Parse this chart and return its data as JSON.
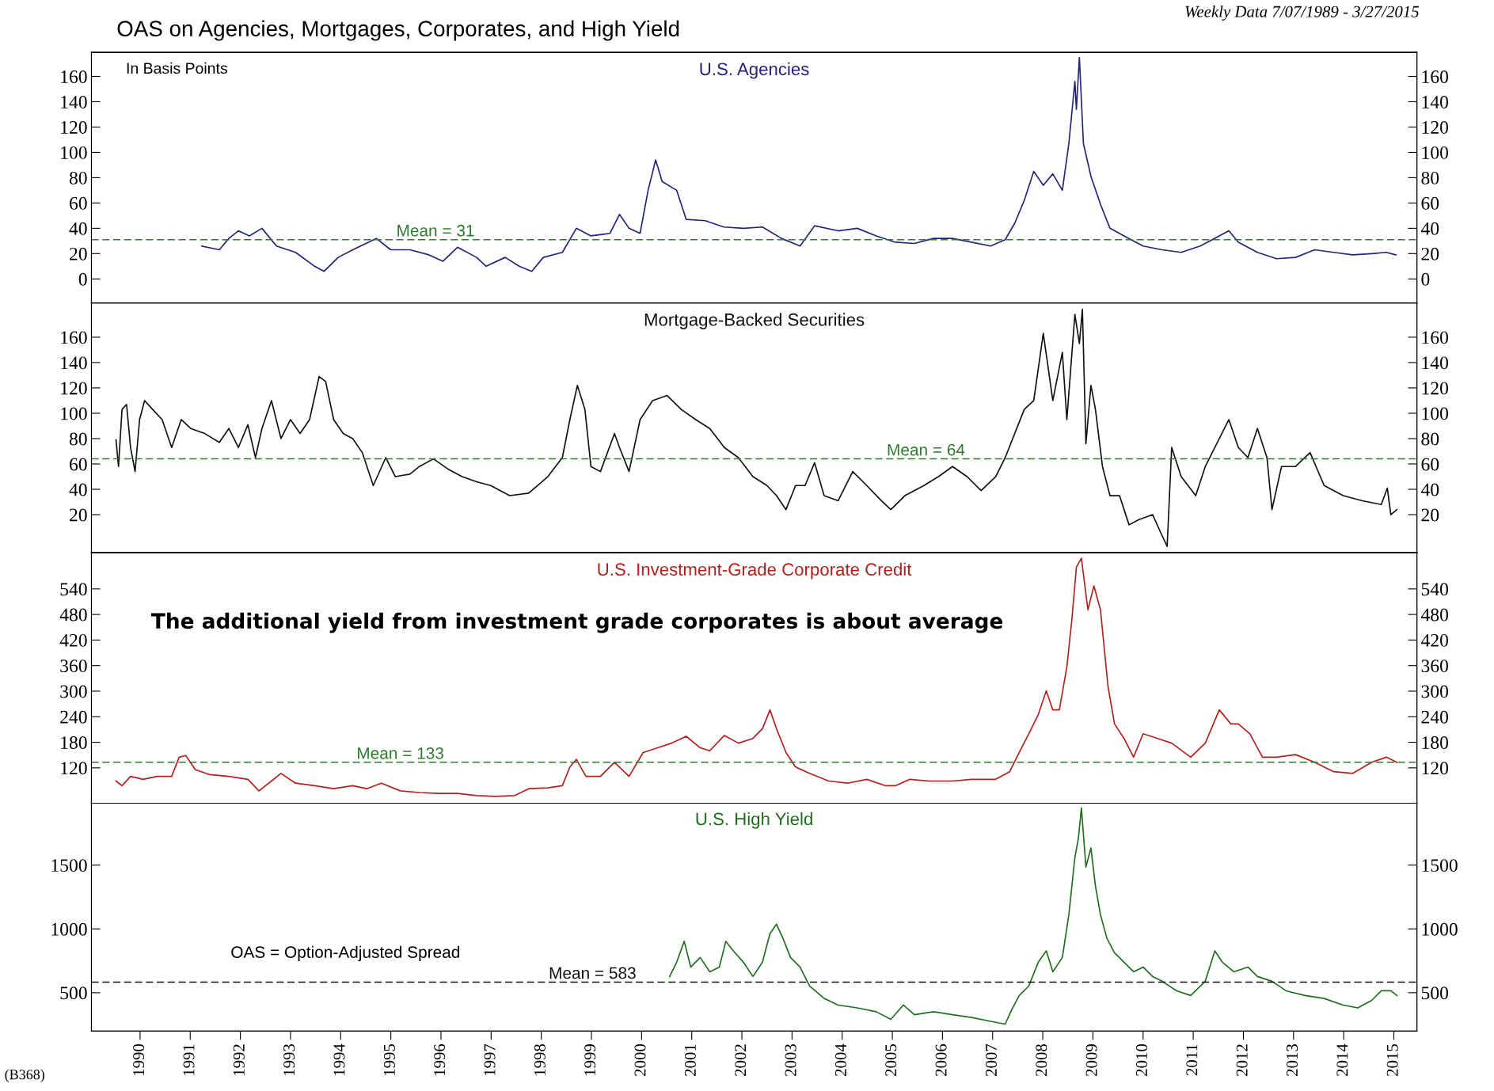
{
  "chart_data": [
    {
      "type": "line",
      "title": "U.S. Agencies",
      "annotations": [
        "OAS on Agencies, Mortgages, Corporates, and High Yield",
        "Weekly Data 7/07/1989 - 3/27/2015",
        "In Basis Points"
      ],
      "x": [
        1991.23,
        1991.58,
        1991.77,
        1991.96,
        1992.18,
        1992.43,
        1992.72,
        1993.1,
        1993.48,
        1993.67,
        1993.95,
        1994.24,
        1994.71,
        1995.0,
        1995.38,
        1995.76,
        1996.04,
        1996.33,
        1996.71,
        1996.9,
        1997.28,
        1997.56,
        1997.81,
        1998.04,
        1998.42,
        1998.7,
        1998.99,
        1999.37,
        1999.56,
        1999.75,
        1999.97,
        2000.13,
        2000.28,
        2000.41,
        2000.7,
        2000.89,
        2001.27,
        2001.64,
        2002.03,
        2002.41,
        2002.79,
        2003.16,
        2003.45,
        2003.92,
        2004.3,
        2004.68,
        2005.06,
        2005.44,
        2005.82,
        2006.2,
        2006.58,
        2006.96,
        2007.25,
        2007.44,
        2007.63,
        2007.82,
        2008.01,
        2008.2,
        2008.39,
        2008.52,
        2008.64,
        2008.67,
        2008.73,
        2008.81,
        2008.96,
        2009.15,
        2009.34,
        2009.62,
        2010.0,
        2010.38,
        2010.76,
        2011.14,
        2011.71,
        2011.9,
        2012.28,
        2012.66,
        2013.04,
        2013.42,
        2013.8,
        2014.18,
        2014.56,
        2014.85,
        2015.04
      ],
      "values": [
        26,
        23,
        32,
        38,
        34,
        40,
        26,
        21,
        10,
        6,
        17,
        23,
        32,
        23,
        23,
        19,
        14,
        25,
        17,
        10,
        17,
        10,
        6,
        17,
        21,
        40,
        34,
        36,
        51,
        40,
        36,
        70,
        94,
        77,
        70,
        47,
        46,
        41,
        40,
        41,
        32,
        26,
        42,
        38,
        40,
        34,
        29,
        28,
        32,
        32,
        29,
        26,
        31,
        44,
        62,
        85,
        74,
        83,
        70,
        107,
        156,
        134,
        175,
        107,
        81,
        59,
        40,
        34,
        26,
        23,
        21,
        26,
        38,
        29,
        21,
        16,
        17,
        23,
        21,
        19,
        20,
        21,
        19
      ],
      "color": "#232378",
      "xlim": [
        1989.03,
        2015.46
      ],
      "ylim": [
        -19,
        179
      ],
      "yticks": [
        0,
        20,
        40,
        60,
        80,
        100,
        120,
        140,
        160
      ],
      "y2lim": [
        -19,
        179
      ],
      "y2ticks": [
        0,
        20,
        40,
        60,
        80,
        100,
        120,
        140,
        160
      ],
      "tick_labels": "y",
      "ref_lines": [
        {
          "axis": "y",
          "value": 31,
          "label": "Mean = 31",
          "color": "#2e7d2e",
          "line_style": "dashed"
        }
      ]
    },
    {
      "type": "line",
      "title": "Mortgage-Backed Securities",
      "x": [
        1989.52,
        1989.57,
        1989.64,
        1989.73,
        1989.81,
        1989.9,
        1989.99,
        1990.09,
        1990.25,
        1990.44,
        1990.63,
        1990.82,
        1991.01,
        1991.29,
        1991.58,
        1991.77,
        1991.96,
        1992.15,
        1992.3,
        1992.43,
        1992.62,
        1992.81,
        1993.0,
        1993.19,
        1993.38,
        1993.57,
        1993.7,
        1993.86,
        1994.05,
        1994.24,
        1994.43,
        1994.65,
        1994.9,
        1995.09,
        1995.38,
        1995.57,
        1995.85,
        1996.14,
        1996.42,
        1996.71,
        1996.99,
        1997.37,
        1997.75,
        1998.13,
        1998.42,
        1998.57,
        1998.72,
        1998.87,
        1998.99,
        1999.18,
        1999.46,
        1999.56,
        1999.75,
        1999.97,
        2000.22,
        2000.51,
        2000.79,
        2001.08,
        2001.36,
        2001.65,
        2001.93,
        2002.22,
        2002.5,
        2002.69,
        2002.88,
        2003.07,
        2003.26,
        2003.45,
        2003.64,
        2003.92,
        2004.21,
        2004.49,
        2004.78,
        2004.97,
        2005.25,
        2005.63,
        2005.92,
        2006.2,
        2006.49,
        2006.77,
        2007.06,
        2007.25,
        2007.44,
        2007.63,
        2007.82,
        2008.01,
        2008.2,
        2008.39,
        2008.48,
        2008.64,
        2008.73,
        2008.79,
        2008.86,
        2008.96,
        2009.05,
        2009.19,
        2009.34,
        2009.53,
        2009.72,
        2009.91,
        2010.19,
        2010.35,
        2010.48,
        2010.57,
        2010.76,
        2011.05,
        2011.24,
        2011.52,
        2011.71,
        2011.9,
        2012.09,
        2012.28,
        2012.47,
        2012.57,
        2012.76,
        2013.04,
        2013.33,
        2013.61,
        2013.99,
        2014.37,
        2014.75,
        2014.87,
        2014.94,
        2015.06
      ],
      "values": [
        79,
        58,
        103,
        107,
        73,
        54,
        95,
        110,
        103,
        95,
        73,
        95,
        88,
        84,
        77,
        88,
        73,
        91,
        65,
        88,
        110,
        80,
        95,
        84,
        95,
        129,
        125,
        95,
        84,
        80,
        69,
        43,
        65,
        50,
        52,
        58,
        64,
        56,
        50,
        46,
        43,
        35,
        37,
        50,
        65,
        95,
        122,
        103,
        58,
        54,
        84,
        73,
        54,
        95,
        110,
        114,
        103,
        95,
        88,
        73,
        65,
        50,
        43,
        35,
        24,
        43,
        43,
        61,
        35,
        31,
        54,
        43,
        31,
        24,
        35,
        43,
        50,
        58,
        50,
        39,
        50,
        65,
        84,
        103,
        110,
        163,
        110,
        148,
        95,
        178,
        155,
        182,
        76,
        122,
        103,
        58,
        35,
        35,
        12,
        16,
        20,
        6,
        -5,
        73,
        50,
        35,
        58,
        80,
        95,
        73,
        65,
        88,
        65,
        24,
        58,
        58,
        69,
        43,
        35,
        31,
        28,
        41,
        20,
        24
      ],
      "color": "#111111",
      "xlim": [
        1989.03,
        2015.46
      ],
      "ylim": [
        -10,
        187
      ],
      "yticks": [
        20,
        40,
        60,
        80,
        100,
        120,
        140,
        160
      ],
      "y2lim": [
        -10,
        187
      ],
      "y2ticks": [
        20,
        40,
        60,
        80,
        100,
        120,
        140,
        160
      ],
      "tick_labels": "y",
      "ref_lines": [
        {
          "axis": "y",
          "value": 64,
          "label": "Mean = 64",
          "color": "#2e7d2e",
          "line_style": "dashed"
        }
      ]
    },
    {
      "type": "line",
      "title": "U.S. Investment-Grade Corporate Credit",
      "annotations": [
        "The additional yield from investment grade corporates is about average"
      ],
      "x": [
        1989.52,
        1989.64,
        1989.81,
        1990.06,
        1990.34,
        1990.63,
        1990.78,
        1990.91,
        1991.1,
        1991.39,
        1991.77,
        1992.15,
        1992.37,
        1992.62,
        1992.81,
        1993.1,
        1993.48,
        1993.86,
        1994.24,
        1994.52,
        1994.81,
        1995.19,
        1995.57,
        1995.95,
        1996.33,
        1996.71,
        1997.09,
        1997.47,
        1997.75,
        1998.13,
        1998.42,
        1998.57,
        1998.7,
        1998.89,
        1999.18,
        1999.46,
        1999.75,
        2000.03,
        2000.32,
        2000.6,
        2000.89,
        2001.17,
        2001.36,
        2001.65,
        2001.93,
        2002.22,
        2002.41,
        2002.56,
        2002.69,
        2002.88,
        2003.07,
        2003.35,
        2003.73,
        2004.11,
        2004.49,
        2004.87,
        2005.06,
        2005.35,
        2005.73,
        2006.2,
        2006.58,
        2007.06,
        2007.34,
        2007.53,
        2007.72,
        2007.91,
        2008.07,
        2008.2,
        2008.33,
        2008.48,
        2008.58,
        2008.67,
        2008.77,
        2008.9,
        2009.02,
        2009.15,
        2009.3,
        2009.43,
        2009.62,
        2009.81,
        2010.0,
        2010.29,
        2010.57,
        2010.95,
        2011.24,
        2011.52,
        2011.75,
        2011.9,
        2012.13,
        2012.38,
        2012.66,
        2013.04,
        2013.42,
        2013.8,
        2014.18,
        2014.56,
        2014.85,
        2015.06
      ],
      "values": [
        89,
        78,
        100,
        93,
        100,
        100,
        145,
        149,
        116,
        104,
        100,
        93,
        66,
        89,
        107,
        84,
        78,
        71,
        78,
        71,
        84,
        66,
        62,
        60,
        60,
        55,
        53,
        55,
        71,
        73,
        78,
        122,
        140,
        100,
        100,
        133,
        100,
        156,
        167,
        178,
        194,
        167,
        160,
        196,
        178,
        189,
        212,
        256,
        212,
        156,
        122,
        107,
        89,
        84,
        93,
        78,
        78,
        93,
        89,
        89,
        93,
        93,
        111,
        156,
        200,
        245,
        301,
        256,
        256,
        357,
        468,
        591,
        612,
        491,
        547,
        491,
        312,
        223,
        189,
        145,
        200,
        189,
        178,
        145,
        178,
        256,
        223,
        223,
        200,
        145,
        145,
        151,
        133,
        111,
        107,
        133,
        145,
        133
      ],
      "color": "#b3201c",
      "xlim": [
        1989.03,
        2015.46
      ],
      "ylim": [
        37,
        625
      ],
      "yticks": [
        120,
        180,
        240,
        300,
        360,
        420,
        480,
        540
      ],
      "y2lim": [
        37,
        625
      ],
      "y2ticks": [
        120,
        180,
        240,
        300,
        360,
        420,
        480,
        540
      ],
      "tick_labels": "y",
      "ref_lines": [
        {
          "axis": "y",
          "value": 133,
          "label": "Mean = 133",
          "color": "#2e7d2e",
          "line_style": "dashed"
        }
      ]
    },
    {
      "type": "line",
      "title": "U.S. High Yield",
      "annotations": [
        "OAS = Option-Adjusted Spread",
        "(B368)"
      ],
      "x": [
        2000.56,
        2000.7,
        2000.85,
        2000.98,
        2001.17,
        2001.36,
        2001.55,
        2001.68,
        2001.83,
        2002.03,
        2002.22,
        2002.41,
        2002.56,
        2002.69,
        2002.82,
        2002.97,
        2003.16,
        2003.35,
        2003.64,
        2003.92,
        2004.3,
        2004.68,
        2004.97,
        2005.22,
        2005.44,
        2005.82,
        2006.2,
        2006.58,
        2006.96,
        2007.25,
        2007.38,
        2007.53,
        2007.72,
        2007.91,
        2008.07,
        2008.2,
        2008.39,
        2008.52,
        2008.64,
        2008.71,
        2008.77,
        2008.86,
        2008.96,
        2009.05,
        2009.15,
        2009.28,
        2009.43,
        2009.62,
        2009.81,
        2010.0,
        2010.19,
        2010.38,
        2010.67,
        2010.95,
        2011.24,
        2011.43,
        2011.58,
        2011.81,
        2012.09,
        2012.28,
        2012.57,
        2012.85,
        2013.23,
        2013.61,
        2013.99,
        2014.28,
        2014.56,
        2014.75,
        2014.94,
        2015.06
      ],
      "values": [
        627,
        739,
        903,
        701,
        776,
        664,
        701,
        903,
        828,
        739,
        627,
        739,
        963,
        1037,
        925,
        776,
        701,
        552,
        455,
        403,
        381,
        351,
        291,
        403,
        328,
        351,
        328,
        306,
        276,
        254,
        366,
        478,
        552,
        739,
        828,
        664,
        776,
        1112,
        1560,
        1709,
        1948,
        1485,
        1634,
        1336,
        1112,
        925,
        813,
        739,
        664,
        701,
        627,
        590,
        515,
        478,
        590,
        828,
        739,
        664,
        701,
        627,
        590,
        515,
        478,
        455,
        403,
        381,
        440,
        515,
        515,
        478
      ],
      "color": "#1f6e1f",
      "xlim": [
        1989.03,
        2015.46
      ],
      "ylim": [
        200,
        1985
      ],
      "yticks": [
        500,
        1000,
        1500
      ],
      "y2lim": [
        200,
        1985
      ],
      "y2ticks": [
        500,
        1000,
        1500
      ],
      "xticks": [
        1990,
        1991,
        1992,
        1993,
        1994,
        1995,
        1996,
        1997,
        1998,
        1999,
        2000,
        2001,
        2002,
        2003,
        2004,
        2005,
        2006,
        2007,
        2008,
        2009,
        2010,
        2011,
        2012,
        2013,
        2014,
        2015
      ],
      "ref_lines": [
        {
          "axis": "y",
          "value": 583,
          "label": "Mean = 583",
          "color": "#111111",
          "line_style": "dashed"
        }
      ]
    }
  ]
}
